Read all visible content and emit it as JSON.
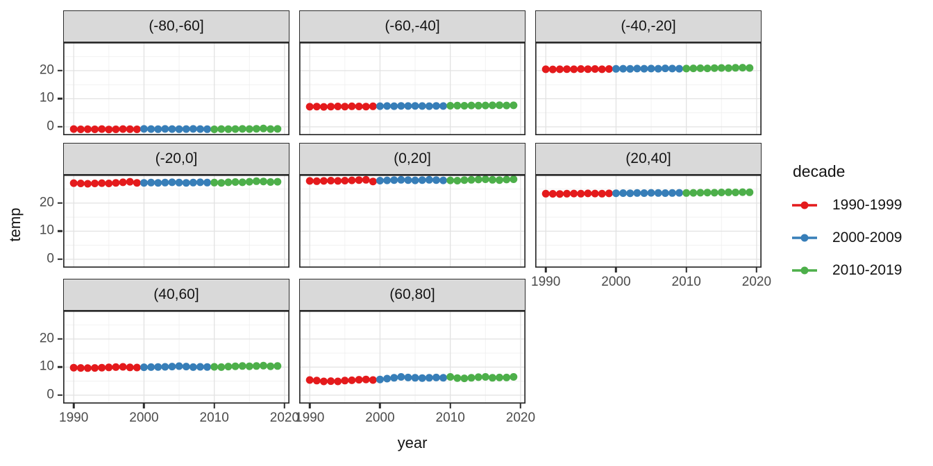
{
  "axes": {
    "x_title": "year",
    "y_title": "temp"
  },
  "legend": {
    "title": "decade",
    "entries": [
      {
        "label": "1990-1999",
        "color": "#E41A1C"
      },
      {
        "label": "2000-2009",
        "color": "#377EB8"
      },
      {
        "label": "2010-2019",
        "color": "#4DAF4A"
      }
    ]
  },
  "style": {
    "strip_fill": "#D9D9D9",
    "strip_border": "#2b2b2b",
    "panel_border": "#2b2b2b",
    "grid_major": "#E2E2E2",
    "grid_minor": "#F0F0F0",
    "tick_label_color": "#4b4b4b",
    "text_color": "#141414",
    "background": "#FFFFFF"
  },
  "chart_data": {
    "type": "scatter",
    "title": "",
    "xlabel": "year",
    "ylabel": "temp",
    "legend_title": "decade",
    "legend_position": "right",
    "grid": "major+minor",
    "x": [
      1990,
      1991,
      1992,
      1993,
      1994,
      1995,
      1996,
      1997,
      1998,
      1999,
      2000,
      2001,
      2002,
      2003,
      2004,
      2005,
      2006,
      2007,
      2008,
      2009,
      2010,
      2011,
      2012,
      2013,
      2014,
      2015,
      2016,
      2017,
      2018,
      2019
    ],
    "x_ticks": [
      1990,
      2000,
      2010,
      2020
    ],
    "x_minor": [
      1995,
      2005,
      2015
    ],
    "y_ticks": [
      0,
      10,
      20
    ],
    "y_minor": [
      5,
      15,
      25
    ],
    "x_range": [
      1988.5,
      2020.7
    ],
    "y_range": [
      -3.0,
      30.1
    ],
    "color_by": "decade",
    "decades": [
      {
        "label": "1990-1999",
        "color": "#E41A1C",
        "from": 1990,
        "to": 1999
      },
      {
        "label": "2000-2009",
        "color": "#377EB8",
        "from": 2000,
        "to": 2009
      },
      {
        "label": "2010-2019",
        "color": "#4DAF4A",
        "from": 2010,
        "to": 2019
      }
    ],
    "facets": [
      {
        "label": "(-80,-60]",
        "values": [
          -0.8,
          -0.9,
          -0.85,
          -0.9,
          -0.8,
          -0.95,
          -0.9,
          -0.8,
          -0.85,
          -0.9,
          -0.75,
          -0.8,
          -0.85,
          -0.75,
          -0.8,
          -0.85,
          -0.8,
          -0.75,
          -0.8,
          -0.85,
          -0.9,
          -0.8,
          -0.85,
          -0.8,
          -0.75,
          -0.8,
          -0.7,
          -0.6,
          -0.8,
          -0.75
        ]
      },
      {
        "label": "(-60,-40]",
        "values": [
          7.15,
          7.2,
          7.1,
          7.2,
          7.25,
          7.2,
          7.3,
          7.25,
          7.2,
          7.3,
          7.35,
          7.4,
          7.35,
          7.45,
          7.4,
          7.45,
          7.4,
          7.35,
          7.45,
          7.4,
          7.5,
          7.55,
          7.5,
          7.6,
          7.55,
          7.6,
          7.65,
          7.7,
          7.6,
          7.65
        ]
      },
      {
        "label": "(-40,-20]",
        "values": [
          20.5,
          20.45,
          20.5,
          20.55,
          20.5,
          20.6,
          20.55,
          20.6,
          20.5,
          20.6,
          20.65,
          20.7,
          20.65,
          20.75,
          20.7,
          20.75,
          20.7,
          20.8,
          20.75,
          20.7,
          20.75,
          20.8,
          20.85,
          20.8,
          20.9,
          20.95,
          20.9,
          21.0,
          21.05,
          20.95
        ]
      },
      {
        "label": "(-20,0]",
        "values": [
          27.1,
          27.0,
          26.9,
          27.0,
          27.1,
          27.0,
          27.2,
          27.4,
          27.6,
          27.2,
          27.2,
          27.3,
          27.2,
          27.3,
          27.4,
          27.3,
          27.2,
          27.3,
          27.4,
          27.3,
          27.3,
          27.2,
          27.4,
          27.5,
          27.4,
          27.6,
          27.8,
          27.7,
          27.5,
          27.6
        ]
      },
      {
        "label": "(0,20]",
        "values": [
          27.9,
          27.8,
          27.9,
          28.0,
          27.9,
          28.0,
          28.1,
          28.2,
          28.3,
          27.7,
          28.0,
          28.1,
          28.2,
          28.3,
          28.2,
          28.1,
          28.2,
          28.3,
          28.2,
          28.1,
          28.1,
          28.0,
          28.2,
          28.3,
          28.4,
          28.5,
          28.3,
          28.2,
          28.4,
          28.5
        ]
      },
      {
        "label": "(20,40]",
        "values": [
          23.35,
          23.3,
          23.25,
          23.35,
          23.4,
          23.35,
          23.45,
          23.4,
          23.35,
          23.45,
          23.5,
          23.55,
          23.5,
          23.6,
          23.55,
          23.65,
          23.6,
          23.55,
          23.6,
          23.65,
          23.6,
          23.65,
          23.7,
          23.75,
          23.7,
          23.8,
          23.85,
          23.8,
          23.9,
          23.85
        ]
      },
      {
        "label": "(40,60]",
        "values": [
          9.8,
          9.7,
          9.65,
          9.7,
          9.8,
          9.9,
          10.0,
          10.1,
          9.9,
          9.85,
          9.95,
          10.0,
          10.05,
          10.1,
          10.2,
          10.35,
          10.2,
          10.0,
          10.1,
          10.05,
          10.1,
          10.0,
          10.2,
          10.3,
          10.4,
          10.3,
          10.4,
          10.5,
          10.3,
          10.4
        ]
      },
      {
        "label": "(60,80]",
        "values": [
          5.4,
          5.2,
          4.9,
          5.0,
          4.9,
          5.2,
          5.3,
          5.5,
          5.6,
          5.4,
          5.6,
          5.9,
          6.2,
          6.5,
          6.3,
          6.2,
          6.1,
          6.2,
          6.3,
          6.2,
          6.5,
          6.1,
          6.0,
          6.2,
          6.4,
          6.5,
          6.2,
          6.3,
          6.3,
          6.5
        ]
      }
    ]
  }
}
